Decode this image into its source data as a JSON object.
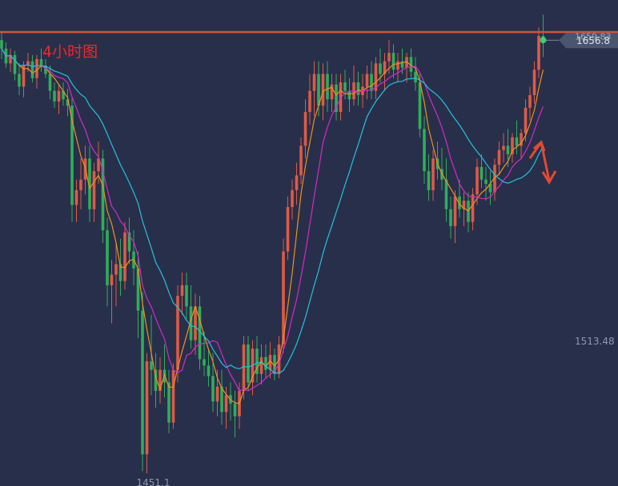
{
  "chart_data": {
    "type": "candlestick",
    "title": "4小时图",
    "xlabel": "",
    "ylabel": "",
    "ylim": [
      1445,
      1675
    ],
    "resistance_level": 1659.8,
    "last_price": "1656.8",
    "last_price_sub": "1659.83",
    "price_labels": [
      {
        "name": "low-label",
        "text": "1451.1",
        "value": 1451.1,
        "index": 35
      },
      {
        "name": "right-scale-label",
        "text": "1513.48",
        "value": 1513.48
      }
    ],
    "colors": {
      "up": "#e05a45",
      "down": "#2fae5a",
      "ma_short": "#f0901c",
      "ma_mid": "#d629c7",
      "ma_long": "#22c3dd",
      "resistance": "#d9503a",
      "arrow": "#e24a30",
      "tag": "#4b5570"
    },
    "ohlc": [
      [
        1656,
        1660,
        1647,
        1652
      ],
      [
        1652,
        1655,
        1643,
        1645
      ],
      [
        1645,
        1652,
        1641,
        1649
      ],
      [
        1649,
        1651,
        1637,
        1640
      ],
      [
        1640,
        1645,
        1630,
        1634
      ],
      [
        1634,
        1646,
        1629,
        1644
      ],
      [
        1644,
        1650,
        1641,
        1646
      ],
      [
        1646,
        1649,
        1636,
        1638
      ],
      [
        1638,
        1649,
        1633,
        1647
      ],
      [
        1647,
        1652,
        1641,
        1644
      ],
      [
        1644,
        1647,
        1638,
        1640
      ],
      [
        1640,
        1644,
        1628,
        1632
      ],
      [
        1632,
        1636,
        1624,
        1627
      ],
      [
        1627,
        1635,
        1621,
        1632
      ],
      [
        1632,
        1636,
        1625,
        1628
      ],
      [
        1628,
        1633,
        1620,
        1625
      ],
      [
        1625,
        1629,
        1570,
        1578
      ],
      [
        1578,
        1590,
        1570,
        1585
      ],
      [
        1585,
        1600,
        1576,
        1590
      ],
      [
        1590,
        1606,
        1583,
        1600
      ],
      [
        1600,
        1606,
        1570,
        1576
      ],
      [
        1576,
        1598,
        1570,
        1594
      ],
      [
        1594,
        1608,
        1588,
        1600
      ],
      [
        1600,
        1604,
        1560,
        1566
      ],
      [
        1566,
        1572,
        1530,
        1540
      ],
      [
        1540,
        1552,
        1522,
        1545
      ],
      [
        1545,
        1560,
        1530,
        1550
      ],
      [
        1550,
        1562,
        1535,
        1542
      ],
      [
        1542,
        1570,
        1538,
        1565
      ],
      [
        1565,
        1572,
        1550,
        1556
      ],
      [
        1556,
        1566,
        1540,
        1548
      ],
      [
        1548,
        1556,
        1515,
        1528
      ],
      [
        1528,
        1537,
        1452,
        1460
      ],
      [
        1460,
        1508,
        1451,
        1504
      ],
      [
        1504,
        1526,
        1488,
        1500
      ],
      [
        1500,
        1508,
        1482,
        1490
      ],
      [
        1490,
        1506,
        1484,
        1500
      ],
      [
        1500,
        1512,
        1487,
        1494
      ],
      [
        1494,
        1500,
        1470,
        1475
      ],
      [
        1475,
        1503,
        1472,
        1500
      ],
      [
        1500,
        1540,
        1494,
        1535
      ],
      [
        1535,
        1546,
        1526,
        1540
      ],
      [
        1540,
        1546,
        1524,
        1530
      ],
      [
        1530,
        1540,
        1510,
        1514
      ],
      [
        1514,
        1536,
        1507,
        1530
      ],
      [
        1530,
        1535,
        1500,
        1505
      ],
      [
        1505,
        1518,
        1497,
        1502
      ],
      [
        1502,
        1510,
        1492,
        1497
      ],
      [
        1497,
        1508,
        1480,
        1485
      ],
      [
        1485,
        1500,
        1478,
        1492
      ],
      [
        1492,
        1500,
        1474,
        1480
      ],
      [
        1480,
        1492,
        1472,
        1488
      ],
      [
        1488,
        1494,
        1476,
        1484
      ],
      [
        1484,
        1490,
        1468,
        1478
      ],
      [
        1478,
        1494,
        1472,
        1490
      ],
      [
        1490,
        1516,
        1486,
        1512
      ],
      [
        1512,
        1516,
        1490,
        1494
      ],
      [
        1494,
        1514,
        1488,
        1510
      ],
      [
        1510,
        1516,
        1494,
        1498
      ],
      [
        1498,
        1512,
        1493,
        1506
      ],
      [
        1506,
        1512,
        1496,
        1500
      ],
      [
        1500,
        1513,
        1496,
        1507
      ],
      [
        1507,
        1510,
        1495,
        1498
      ],
      [
        1498,
        1516,
        1496,
        1512
      ],
      [
        1512,
        1562,
        1508,
        1556
      ],
      [
        1556,
        1582,
        1552,
        1577
      ],
      [
        1577,
        1590,
        1571,
        1585
      ],
      [
        1585,
        1598,
        1578,
        1592
      ],
      [
        1592,
        1610,
        1588,
        1606
      ],
      [
        1606,
        1628,
        1600,
        1622
      ],
      [
        1622,
        1640,
        1616,
        1632
      ],
      [
        1632,
        1646,
        1620,
        1640
      ],
      [
        1640,
        1646,
        1620,
        1625
      ],
      [
        1625,
        1645,
        1618,
        1640
      ],
      [
        1640,
        1646,
        1622,
        1628
      ],
      [
        1628,
        1640,
        1622,
        1635
      ],
      [
        1635,
        1640,
        1618,
        1622
      ],
      [
        1622,
        1640,
        1618,
        1636
      ],
      [
        1636,
        1642,
        1628,
        1632
      ],
      [
        1632,
        1638,
        1622,
        1628
      ],
      [
        1628,
        1644,
        1625,
        1636
      ],
      [
        1636,
        1641,
        1625,
        1630
      ],
      [
        1630,
        1640,
        1624,
        1634
      ],
      [
        1634,
        1644,
        1628,
        1640
      ],
      [
        1640,
        1646,
        1628,
        1632
      ],
      [
        1632,
        1648,
        1628,
        1645
      ],
      [
        1645,
        1652,
        1636,
        1640
      ],
      [
        1640,
        1650,
        1632,
        1646
      ],
      [
        1646,
        1656,
        1640,
        1650
      ],
      [
        1650,
        1654,
        1638,
        1642
      ],
      [
        1642,
        1650,
        1636,
        1646
      ],
      [
        1646,
        1652,
        1640,
        1643
      ],
      [
        1643,
        1650,
        1636,
        1648
      ],
      [
        1648,
        1652,
        1638,
        1641
      ],
      [
        1641,
        1648,
        1632,
        1636
      ],
      [
        1636,
        1640,
        1610,
        1614
      ],
      [
        1614,
        1620,
        1588,
        1594
      ],
      [
        1594,
        1602,
        1580,
        1585
      ],
      [
        1585,
        1604,
        1580,
        1600
      ],
      [
        1600,
        1608,
        1590,
        1595
      ],
      [
        1595,
        1605,
        1585,
        1590
      ],
      [
        1590,
        1600,
        1570,
        1576
      ],
      [
        1576,
        1582,
        1562,
        1568
      ],
      [
        1568,
        1585,
        1560,
        1582
      ],
      [
        1582,
        1590,
        1572,
        1576
      ],
      [
        1576,
        1584,
        1568,
        1580
      ],
      [
        1580,
        1584,
        1565,
        1570
      ],
      [
        1570,
        1586,
        1566,
        1583
      ],
      [
        1583,
        1600,
        1578,
        1596
      ],
      [
        1596,
        1602,
        1586,
        1590
      ],
      [
        1590,
        1596,
        1580,
        1588
      ],
      [
        1588,
        1594,
        1578,
        1584
      ],
      [
        1584,
        1600,
        1580,
        1597
      ],
      [
        1597,
        1608,
        1592,
        1604
      ],
      [
        1604,
        1612,
        1598,
        1606
      ],
      [
        1606,
        1614,
        1596,
        1602
      ],
      [
        1602,
        1612,
        1598,
        1610
      ],
      [
        1610,
        1618,
        1602,
        1606
      ],
      [
        1606,
        1614,
        1600,
        1612
      ],
      [
        1612,
        1628,
        1608,
        1624
      ],
      [
        1624,
        1634,
        1618,
        1630
      ],
      [
        1630,
        1646,
        1626,
        1642
      ],
      [
        1642,
        1662,
        1638,
        1658
      ],
      [
        1658,
        1668,
        1648,
        1656
      ]
    ]
  }
}
